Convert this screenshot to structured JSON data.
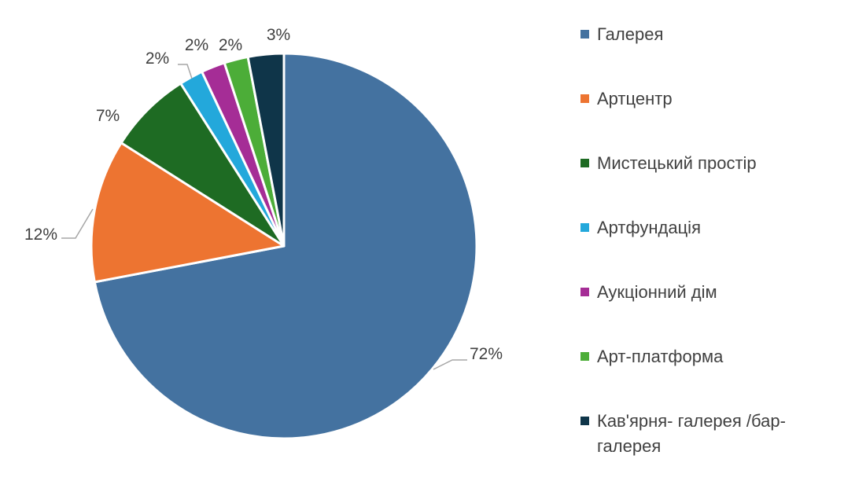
{
  "chart_data": {
    "type": "pie",
    "title": "",
    "legend_position": "right",
    "categories": [
      "Галерея",
      "Артцентр",
      "Мистецький простір",
      "Артфундація",
      "Аукціонний дім",
      "Арт-платформа",
      "Кав'ярня- галерея /бар-галерея"
    ],
    "values": [
      72,
      12,
      7,
      2,
      2,
      2,
      3
    ],
    "data_labels": [
      "72%",
      "12%",
      "7%",
      "2%",
      "2%",
      "2%",
      "3%"
    ],
    "colors": [
      "#4472A0",
      "#ED7431",
      "#1E6B23",
      "#23A8DB",
      "#A52D96",
      "#4CAD38",
      "#0F3549"
    ]
  }
}
